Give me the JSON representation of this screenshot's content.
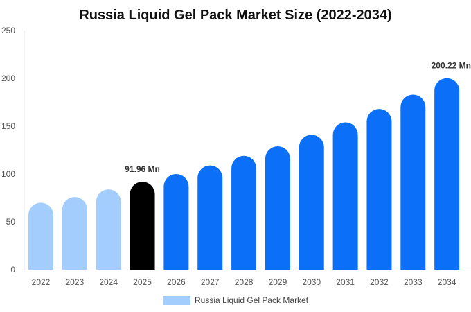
{
  "chart_data": {
    "type": "bar",
    "title": "Russia Liquid Gel Pack Market Size (2022-2034)",
    "xlabel": "",
    "ylabel": "",
    "categories": [
      "2022",
      "2023",
      "2024",
      "2025",
      "2026",
      "2027",
      "2028",
      "2029",
      "2030",
      "2031",
      "2032",
      "2033",
      "2034"
    ],
    "series": [
      {
        "name": "Russia Liquid Gel Pack Market",
        "values": [
          70,
          76,
          84,
          91.96,
          100,
          109,
          119,
          129,
          141,
          154,
          168,
          183,
          200.22
        ]
      }
    ],
    "data_labels": [
      {
        "index": 3,
        "text": "91.96 Mn"
      },
      {
        "index": 12,
        "text": "200.22 Mn"
      }
    ],
    "ylim": [
      0,
      250
    ],
    "yticks": [
      "0",
      "50",
      "100",
      "150",
      "200",
      "250"
    ],
    "grid": false,
    "legend": "bottom",
    "colors": {
      "historical": "#a3cdfd",
      "current": "#000000",
      "forecast": "#0b6ff7",
      "legend_swatch": "#a3cdfd"
    },
    "bar_styles": [
      "historical",
      "historical",
      "historical",
      "current",
      "forecast",
      "forecast",
      "forecast",
      "forecast",
      "forecast",
      "forecast",
      "forecast",
      "forecast",
      "forecast"
    ]
  }
}
